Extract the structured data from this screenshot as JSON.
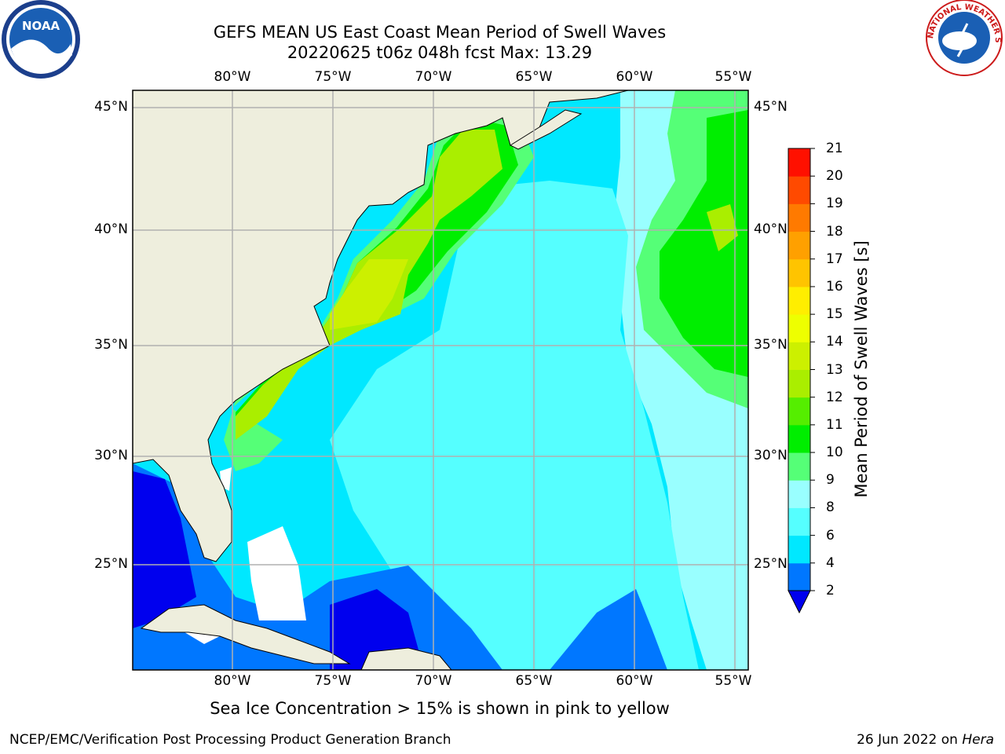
{
  "header": {
    "title_line1": "GEFS MEAN US East Coast Mean Period of Swell Waves",
    "title_line2": "20220625 t06z 048h fcst   Max: 13.29"
  },
  "logos": {
    "left_text": "NOAA",
    "right_text": "NATIONAL WEATHER SERVICE"
  },
  "map": {
    "lon_labels": [
      "80°W",
      "75°W",
      "70°W",
      "65°W",
      "60°W",
      "55°W"
    ],
    "lat_labels": [
      "45°N",
      "40°N",
      "35°N",
      "30°N",
      "25°N"
    ],
    "lon_range": [
      -85,
      -54.5
    ],
    "lat_range": [
      20,
      45.8
    ],
    "colors": {
      "land": "#eeeedd",
      "grid": "#b0b0b0",
      "coast": "#000000",
      "no_data": "#ffffff"
    }
  },
  "colorbar": {
    "label": "Mean Period of Swell Waves [s]",
    "ticks": [
      "2",
      "4",
      "6",
      "8",
      "9",
      "10",
      "11",
      "12",
      "13",
      "14",
      "15",
      "16",
      "17",
      "18",
      "19",
      "20",
      "21"
    ],
    "colors": [
      "#0000ee",
      "#0077ff",
      "#00e8ff",
      "#55ffff",
      "#99ffff",
      "#55ff77",
      "#00ee00",
      "#55ee00",
      "#aaee00",
      "#ccf000",
      "#eeff00",
      "#ffee00",
      "#ffc400",
      "#ffa000",
      "#ff7a00",
      "#ff4a00",
      "#ff1000",
      "#ff0000"
    ]
  },
  "footer": {
    "note": "Sea Ice Concentration > 15% is shown in pink to yellow",
    "credit": "NCEP/EMC/Verification Post Processing Product Generation Branch",
    "date_prefix": "26 Jun 2022 on ",
    "date_machine": "Hera"
  }
}
